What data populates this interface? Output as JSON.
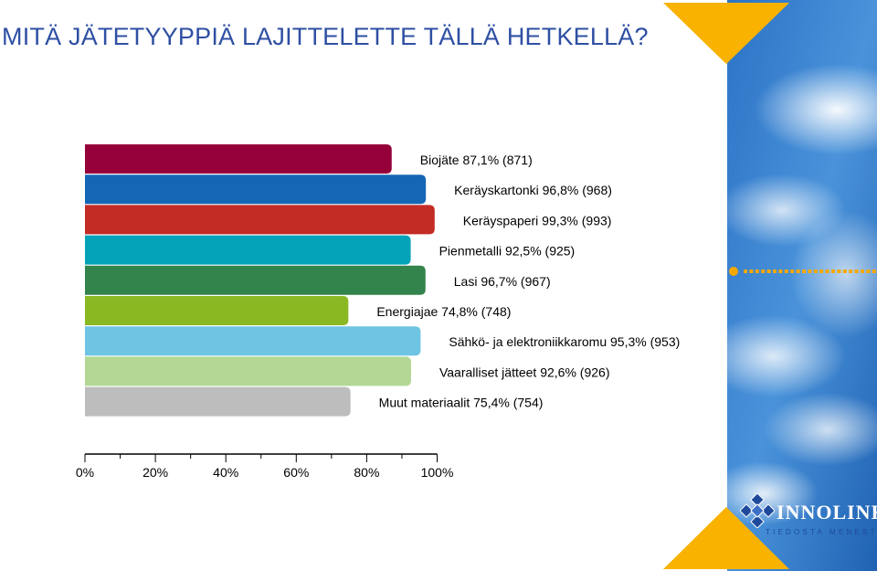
{
  "title": "MITÄ JÄTETYYPPIÄ LAJITTELETTE TÄLLÄ HETKELLÄ?",
  "logo": {
    "name": "INNOLINK",
    "tagline": "TIEDOSTA MENESTYS"
  },
  "colors": {
    "title": "#2e4fa3",
    "accent_orange": "#f9b200",
    "dots": "#f6a800"
  },
  "chart_data": {
    "type": "bar",
    "orientation": "horizontal",
    "xlim": [
      0,
      100
    ],
    "grid": false,
    "ticks": [
      "0%",
      "20%",
      "40%",
      "60%",
      "80%",
      "100%"
    ],
    "tick_values": [
      0,
      20,
      40,
      60,
      80,
      100
    ],
    "categories": [
      "Biojäte",
      "Keräyskartonki",
      "Keräyspaperi",
      "Pienmetalli",
      "Lasi",
      "Energiajae",
      "Sähkö- ja elektroniikkaromu",
      "Vaaralliset jätteet",
      "Muut materiaalit"
    ],
    "values": [
      87.1,
      96.8,
      99.3,
      92.5,
      96.7,
      74.8,
      95.3,
      92.6,
      75.4
    ],
    "labels": [
      "Biojäte 87,1% (871)",
      "Keräyskartonki 96,8% (968)",
      "Keräyspaperi 99,3% (993)",
      "Pienmetalli 92,5% (925)",
      "Lasi 96,7% (967)",
      "Energiajae 74,8% (748)",
      "Sähkö- ja elektroniikkaromu 95,3% (953)",
      "Vaaralliset jätteet 92,6% (926)",
      "Muut materiaalit 75,4% (754)"
    ],
    "colors": [
      "#96003a",
      "#1467b4",
      "#c32b25",
      "#04a3b8",
      "#33844c",
      "#8ab823",
      "#6ec4e2",
      "#b3d893",
      "#bdbdbd"
    ]
  }
}
